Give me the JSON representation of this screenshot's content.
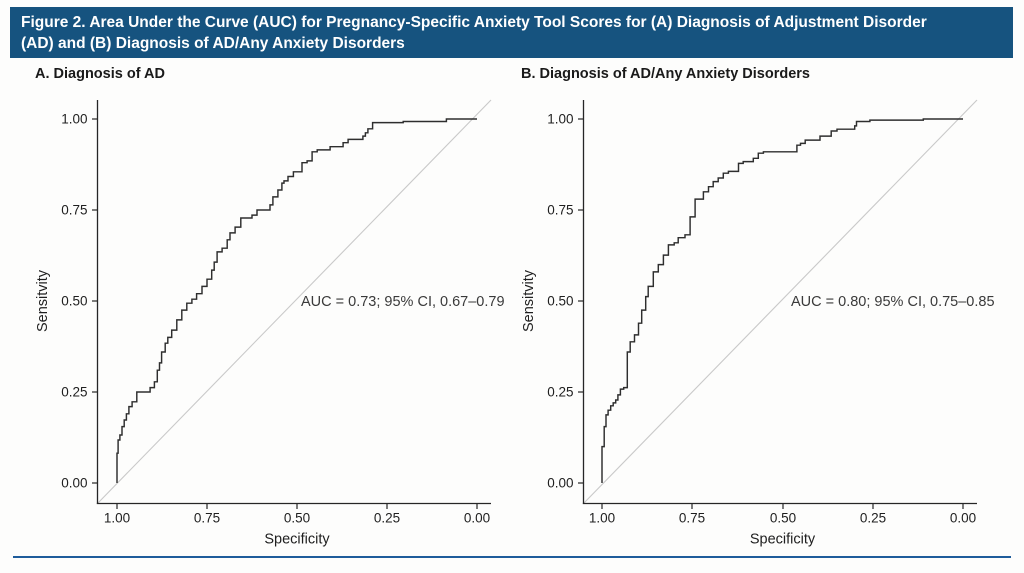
{
  "header": {
    "title": "Figure 2. Area Under the Curve (AUC) for Pregnancy-Specific Anxiety Tool Scores for (A) Diagnosis of Adjustment Disorder (AD) and (B) Diagnosis of AD/Any Anxiety Disorders",
    "title_line1": "Figure 2. Area Under the Curve (AUC) for Pregnancy-Specific Anxiety Tool Scores for (A) Diagnosis of Adjustment Disorder",
    "title_line2": "(AD) and (B) Diagnosis of AD/Any Anxiety Disorders",
    "bg_color": "#16537f",
    "text_color": "#ffffff"
  },
  "footer": {
    "divider_color": "#1e5c9b"
  },
  "colors": {
    "curve": "#2e2e2e",
    "axis": "#262626",
    "reference_line": "#c9c9c9",
    "tick_text": "#1f1f1f"
  },
  "chart_data": [
    {
      "type": "line",
      "title": "A. Diagnosis of AD",
      "xlabel": "Specificity",
      "ylabel": "Sensitvity",
      "x_ticks": [
        "1.00",
        "0.75",
        "0.50",
        "0.25",
        "0.00"
      ],
      "y_ticks": [
        "0.00",
        "0.25",
        "0.50",
        "0.75",
        "1.00"
      ],
      "xlim": [
        1.0,
        0.0
      ],
      "ylim": [
        0.0,
        1.0
      ],
      "x_axis_reversed": true,
      "grid": false,
      "reference_line": "diagonal chance line",
      "annotation": "AUC = 0.73; 95% CI, 0.67–0.79",
      "auc": 0.73,
      "ci_lower": 0.67,
      "ci_upper": 0.79,
      "series": [
        {
          "name": "ROC curve (AD)",
          "points_spec_sens": [
            [
              1.0,
              0.0
            ],
            [
              1.0,
              0.05
            ],
            [
              0.997,
              0.082
            ],
            [
              0.992,
              0.118
            ],
            [
              0.986,
              0.132
            ],
            [
              0.98,
              0.155
            ],
            [
              0.974,
              0.173
            ],
            [
              0.967,
              0.19
            ],
            [
              0.958,
              0.21
            ],
            [
              0.945,
              0.223
            ],
            [
              0.908,
              0.25
            ],
            [
              0.896,
              0.262
            ],
            [
              0.888,
              0.278
            ],
            [
              0.882,
              0.31
            ],
            [
              0.876,
              0.33
            ],
            [
              0.866,
              0.36
            ],
            [
              0.859,
              0.384
            ],
            [
              0.848,
              0.4
            ],
            [
              0.834,
              0.42
            ],
            [
              0.82,
              0.448
            ],
            [
              0.806,
              0.475
            ],
            [
              0.792,
              0.494
            ],
            [
              0.779,
              0.505
            ],
            [
              0.764,
              0.52
            ],
            [
              0.75,
              0.54
            ],
            [
              0.737,
              0.56
            ],
            [
              0.73,
              0.585
            ],
            [
              0.722,
              0.607
            ],
            [
              0.708,
              0.635
            ],
            [
              0.694,
              0.645
            ],
            [
              0.686,
              0.668
            ],
            [
              0.672,
              0.687
            ],
            [
              0.656,
              0.703
            ],
            [
              0.625,
              0.728
            ],
            [
              0.611,
              0.736
            ],
            [
              0.575,
              0.75
            ],
            [
              0.567,
              0.764
            ],
            [
              0.553,
              0.786
            ],
            [
              0.542,
              0.805
            ],
            [
              0.536,
              0.824
            ],
            [
              0.525,
              0.83
            ],
            [
              0.51,
              0.842
            ],
            [
              0.486,
              0.855
            ],
            [
              0.472,
              0.88
            ],
            [
              0.458,
              0.885
            ],
            [
              0.444,
              0.91
            ],
            [
              0.408,
              0.915
            ],
            [
              0.372,
              0.924
            ],
            [
              0.358,
              0.935
            ],
            [
              0.317,
              0.944
            ],
            [
              0.31,
              0.953
            ],
            [
              0.303,
              0.962
            ],
            [
              0.29,
              0.973
            ],
            [
              0.205,
              0.99
            ],
            [
              0.085,
              0.993
            ],
            [
              0.08,
              1.0
            ],
            [
              0.0,
              1.0
            ]
          ]
        }
      ]
    },
    {
      "type": "line",
      "title": "B. Diagnosis of AD/Any Anxiety Disorders",
      "xlabel": "Specificity",
      "ylabel": "Sensitvity",
      "x_ticks": [
        "1.00",
        "0.75",
        "0.50",
        "0.25",
        "0.00"
      ],
      "y_ticks": [
        "0.00",
        "0.25",
        "0.50",
        "0.75",
        "1.00"
      ],
      "xlim": [
        1.0,
        0.0
      ],
      "ylim": [
        0.0,
        1.0
      ],
      "x_axis_reversed": true,
      "grid": false,
      "reference_line": "diagonal chance line",
      "annotation": "AUC = 0.80; 95% CI, 0.75–0.85",
      "auc": 0.8,
      "ci_lower": 0.75,
      "ci_upper": 0.85,
      "series": [
        {
          "name": "ROC curve (AD/Any Anxiety)",
          "points_spec_sens": [
            [
              1.0,
              0.0
            ],
            [
              1.0,
              0.031
            ],
            [
              0.994,
              0.1
            ],
            [
              0.989,
              0.155
            ],
            [
              0.983,
              0.187
            ],
            [
              0.976,
              0.2
            ],
            [
              0.969,
              0.212
            ],
            [
              0.962,
              0.22
            ],
            [
              0.956,
              0.228
            ],
            [
              0.949,
              0.242
            ],
            [
              0.94,
              0.258
            ],
            [
              0.93,
              0.262
            ],
            [
              0.922,
              0.36
            ],
            [
              0.91,
              0.388
            ],
            [
              0.899,
              0.407
            ],
            [
              0.89,
              0.439
            ],
            [
              0.879,
              0.475
            ],
            [
              0.872,
              0.512
            ],
            [
              0.858,
              0.54
            ],
            [
              0.844,
              0.58
            ],
            [
              0.83,
              0.6
            ],
            [
              0.816,
              0.626
            ],
            [
              0.8,
              0.654
            ],
            [
              0.789,
              0.66
            ],
            [
              0.77,
              0.674
            ],
            [
              0.756,
              0.682
            ],
            [
              0.742,
              0.731
            ],
            [
              0.719,
              0.78
            ],
            [
              0.705,
              0.8
            ],
            [
              0.692,
              0.814
            ],
            [
              0.678,
              0.828
            ],
            [
              0.664,
              0.838
            ],
            [
              0.65,
              0.851
            ],
            [
              0.622,
              0.856
            ],
            [
              0.609,
              0.878
            ],
            [
              0.581,
              0.883
            ],
            [
              0.567,
              0.892
            ],
            [
              0.553,
              0.906
            ],
            [
              0.46,
              0.91
            ],
            [
              0.45,
              0.928
            ],
            [
              0.437,
              0.933
            ],
            [
              0.396,
              0.942
            ],
            [
              0.365,
              0.953
            ],
            [
              0.349,
              0.967
            ],
            [
              0.3,
              0.972
            ],
            [
              0.295,
              0.981
            ],
            [
              0.258,
              0.993
            ],
            [
              0.11,
              0.997
            ],
            [
              0.09,
              1.0
            ],
            [
              0.0,
              1.0
            ]
          ]
        }
      ]
    }
  ]
}
